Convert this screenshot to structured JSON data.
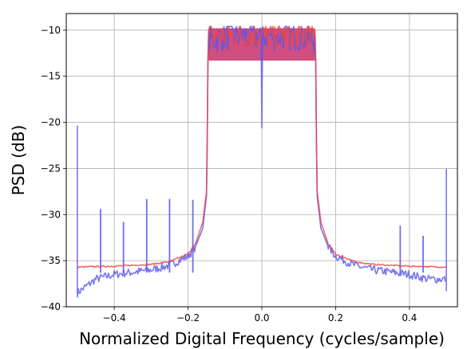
{
  "chart_data": {
    "type": "line",
    "title": "",
    "xlabel": "Normalized Digital Frequency (cycles/sample)",
    "ylabel": "PSD (dB)",
    "xlim": [
      -0.53,
      0.53
    ],
    "ylim": [
      -40,
      -8.2
    ],
    "x_ticks": [
      -0.4,
      -0.2,
      0.0,
      0.2,
      0.4
    ],
    "x_tick_labels": [
      "−0.4",
      "−0.2",
      "0.0",
      "0.2",
      "0.4"
    ],
    "y_ticks": [
      -40,
      -35,
      -30,
      -25,
      -20,
      -15,
      -10
    ],
    "y_tick_labels": [
      "−40",
      "−35",
      "−30",
      "−25",
      "−20",
      "−15",
      "−10"
    ],
    "grid": true,
    "legend": "none",
    "series": [
      {
        "color": "#5555ee",
        "points": [
          [
            -0.5,
            -37.0
          ],
          [
            -0.5,
            -20.4
          ],
          [
            -0.5,
            -38.5
          ],
          [
            -0.45,
            -37.0
          ],
          [
            -0.4,
            -36.5
          ],
          [
            -0.3,
            -36.0
          ],
          [
            -0.25,
            -35.5
          ],
          [
            -0.2,
            -34.5
          ],
          [
            -0.18,
            -33.5
          ],
          [
            -0.16,
            -31.5
          ],
          [
            -0.15,
            -28.0
          ],
          [
            -0.148,
            -22.0
          ],
          [
            -0.146,
            -13.0
          ],
          [
            -0.144,
            -10.5
          ],
          [
            -0.1,
            -10.0
          ],
          [
            -0.05,
            -10.0
          ],
          [
            -0.002,
            -10.0
          ],
          [
            0.0,
            -20.6
          ],
          [
            0.002,
            -10.0
          ],
          [
            0.05,
            -10.0
          ],
          [
            0.1,
            -10.0
          ],
          [
            0.144,
            -10.5
          ],
          [
            0.146,
            -13.0
          ],
          [
            0.148,
            -22.0
          ],
          [
            0.15,
            -28.0
          ],
          [
            0.16,
            -31.5
          ],
          [
            0.18,
            -33.5
          ],
          [
            0.2,
            -34.5
          ],
          [
            0.25,
            -35.5
          ],
          [
            0.3,
            -36.0
          ],
          [
            0.4,
            -36.5
          ],
          [
            0.45,
            -37.0
          ],
          [
            0.5,
            -37.0
          ],
          [
            0.5,
            -25.1
          ],
          [
            0.5,
            -38.3
          ]
        ],
        "spurs": [
          [
            -0.437,
            -29.4
          ],
          [
            -0.375,
            -30.8
          ],
          [
            -0.312,
            -28.3
          ],
          [
            -0.25,
            -28.3
          ],
          [
            -0.187,
            -28.4
          ],
          [
            0.375,
            -31.2
          ],
          [
            0.437,
            -32.3
          ]
        ]
      },
      {
        "color": "#ee4444",
        "points": [
          [
            -0.5,
            -35.7
          ],
          [
            -0.4,
            -35.6
          ],
          [
            -0.3,
            -35.4
          ],
          [
            -0.25,
            -35.1
          ],
          [
            -0.2,
            -34.3
          ],
          [
            -0.18,
            -33.2
          ],
          [
            -0.16,
            -30.8
          ],
          [
            -0.15,
            -27.5
          ],
          [
            -0.148,
            -22.0
          ],
          [
            -0.146,
            -13.5
          ],
          [
            -0.144,
            -10.0
          ],
          [
            -0.1,
            -10.0
          ],
          [
            -0.05,
            -10.0
          ],
          [
            0.0,
            -10.0
          ],
          [
            0.05,
            -10.0
          ],
          [
            0.1,
            -10.0
          ],
          [
            0.144,
            -10.0
          ],
          [
            0.146,
            -13.5
          ],
          [
            0.148,
            -22.0
          ],
          [
            0.15,
            -27.5
          ],
          [
            0.16,
            -30.8
          ],
          [
            0.18,
            -33.2
          ],
          [
            0.2,
            -34.3
          ],
          [
            0.25,
            -35.1
          ],
          [
            0.3,
            -35.4
          ],
          [
            0.4,
            -35.6
          ],
          [
            0.5,
            -35.7
          ]
        ]
      }
    ]
  }
}
